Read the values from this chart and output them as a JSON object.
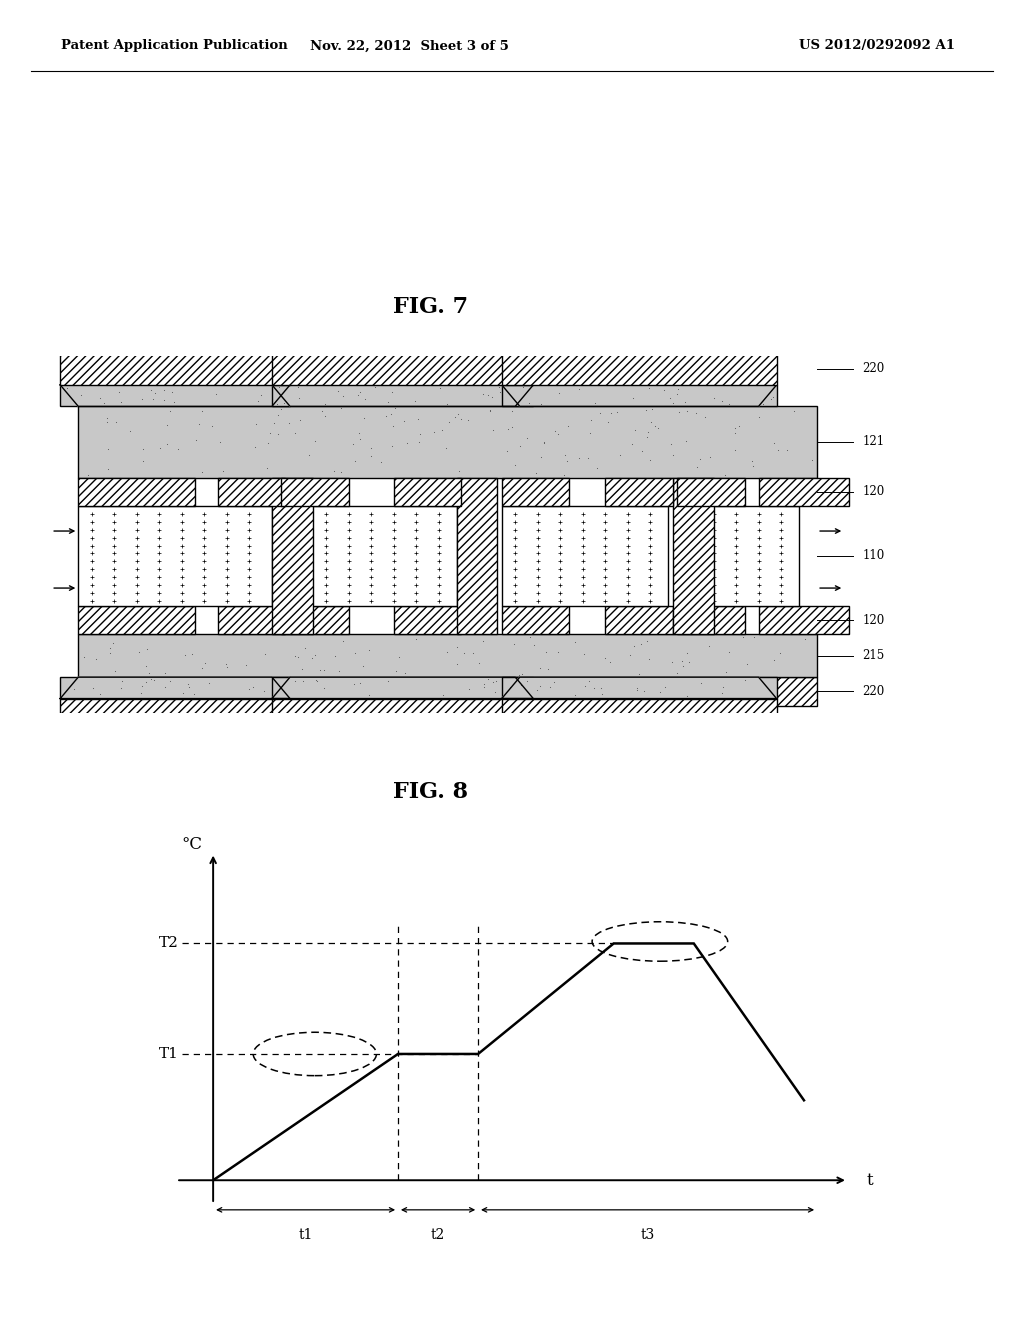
{
  "bg_color": "#ffffff",
  "header_left": "Patent Application Publication",
  "header_mid": "Nov. 22, 2012  Sheet 3 of 5",
  "header_right": "US 2012/0292092 A1",
  "fig7_title": "FIG. 7",
  "fig8_title": "FIG. 8",
  "graph_ylabel": "°C",
  "graph_xlabel": "t",
  "graph_T1": "T1",
  "graph_T2": "T2",
  "graph_t1": "t1",
  "graph_t2": "t2",
  "graph_t3": "t3",
  "layer_labels": [
    "220",
    "121",
    "120",
    "110",
    "120",
    "215",
    "220"
  ],
  "speckle_color": "#c8c8c8",
  "line_color": "#000000"
}
